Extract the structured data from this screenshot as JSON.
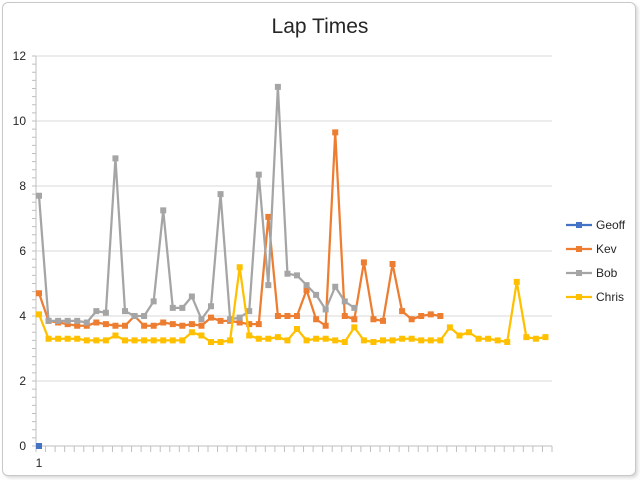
{
  "chart_data": {
    "type": "line",
    "title": "Lap Times",
    "xlabel": "",
    "ylabel": "",
    "ylim": [
      0,
      12
    ],
    "y_ticks": [
      0,
      2,
      4,
      6,
      8,
      10,
      12
    ],
    "x_tick_labels": [
      "1"
    ],
    "x_count": 54,
    "grid": true,
    "legend_position": "right",
    "series": [
      {
        "name": "Geoff",
        "color": "#4472C4",
        "values": [
          0
        ]
      },
      {
        "name": "Kev",
        "color": "#ED7D31",
        "values": [
          4.7,
          3.85,
          3.8,
          3.75,
          3.7,
          3.7,
          3.8,
          3.75,
          3.7,
          3.7,
          4.0,
          3.7,
          3.7,
          3.8,
          3.75,
          3.7,
          3.75,
          3.7,
          3.95,
          3.85,
          3.85,
          3.8,
          3.75,
          3.75,
          7.05,
          4.0,
          4.0,
          4.0,
          4.8,
          3.9,
          3.7,
          9.65,
          4.0,
          3.9,
          5.65,
          3.9,
          3.85,
          5.6,
          4.15,
          3.9,
          4.0,
          4.05,
          4.0
        ]
      },
      {
        "name": "Bob",
        "color": "#A5A5A5",
        "values": [
          7.7,
          3.85,
          3.85,
          3.85,
          3.85,
          3.8,
          4.15,
          4.1,
          8.85,
          4.15,
          4.0,
          4.0,
          4.45,
          7.25,
          4.25,
          4.25,
          4.6,
          3.9,
          4.3,
          7.75,
          3.9,
          3.95,
          4.15,
          8.35,
          4.95,
          11.05,
          5.3,
          5.25,
          4.95,
          4.65,
          4.2,
          4.9,
          4.45,
          4.25
        ]
      },
      {
        "name": "Chris",
        "color": "#FFC000",
        "values": [
          4.05,
          3.3,
          3.3,
          3.3,
          3.3,
          3.25,
          3.25,
          3.25,
          3.4,
          3.25,
          3.25,
          3.25,
          3.25,
          3.25,
          3.25,
          3.25,
          3.5,
          3.4,
          3.2,
          3.2,
          3.25,
          5.5,
          3.4,
          3.3,
          3.3,
          3.35,
          3.25,
          3.6,
          3.25,
          3.3,
          3.3,
          3.25,
          3.2,
          3.65,
          3.25,
          3.2,
          3.25,
          3.25,
          3.3,
          3.3,
          3.25,
          3.25,
          3.25,
          3.65,
          3.4,
          3.5,
          3.3,
          3.3,
          3.25,
          3.2,
          5.05,
          3.35,
          3.3,
          3.35
        ]
      }
    ]
  }
}
